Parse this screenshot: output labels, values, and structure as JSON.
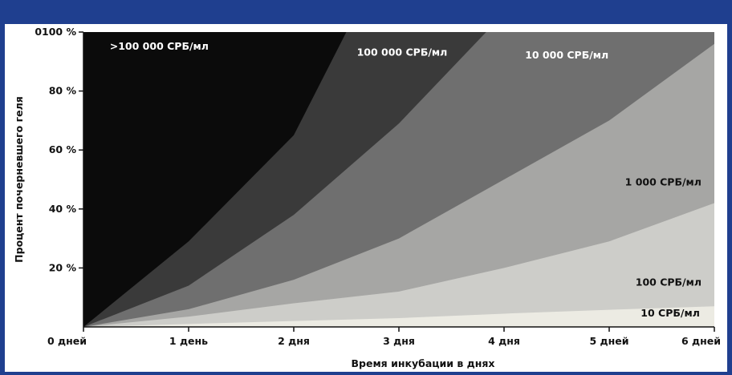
{
  "chart_data": {
    "type": "area",
    "xlabel": "Время инкубации в днях",
    "ylabel": "Процент почерневшего геля",
    "x_tick_labels": [
      "0 дней",
      "1 день",
      "2 дня",
      "3 дня",
      "4 дня",
      "5 дней",
      "6 дней"
    ],
    "y_tick_labels": [
      "20 %",
      "40 %",
      "60 %",
      "80 %",
      "0100 %"
    ],
    "y_ticks": [
      20,
      40,
      60,
      80,
      100
    ],
    "xlim": [
      0,
      6
    ],
    "ylim": [
      0,
      100
    ],
    "grid": false,
    "bands": [
      {
        "label": ">100 000 СРБ/мл",
        "color": "#0b0b0b",
        "label_color": "#ffffff",
        "x": [
          0,
          6
        ],
        "upper": [
          100,
          100
        ]
      },
      {
        "label": "100 000 СРБ/мл",
        "color": "#3a3a3a",
        "label_color": "#ffffff",
        "x": [
          0,
          1,
          2,
          2.5,
          6
        ],
        "upper": [
          0,
          29,
          65,
          100,
          100
        ]
      },
      {
        "label": "10 000 СРБ/мл",
        "color": "#6f6f6f",
        "label_color": "#ffffff",
        "x": [
          0,
          1,
          2,
          3,
          3.83,
          6
        ],
        "upper": [
          0,
          14,
          38,
          69,
          100,
          100
        ]
      },
      {
        "label": "1 000 СРБ/мл",
        "color": "#a6a6a4",
        "label_color": "#111111",
        "x": [
          0,
          1,
          2,
          3,
          4,
          5,
          6
        ],
        "upper": [
          0,
          6,
          16,
          30,
          50,
          70,
          96
        ]
      },
      {
        "label": "100 СРБ/мл",
        "color": "#cdcdc9",
        "label_color": "#111111",
        "x": [
          0,
          1,
          2,
          3,
          4,
          5,
          6
        ],
        "upper": [
          0,
          3.5,
          8,
          12,
          20,
          29,
          42
        ]
      },
      {
        "label": "10 СРБ/мл",
        "color": "#ecebe3",
        "label_color": "#111111",
        "x": [
          0,
          1,
          2,
          3,
          4,
          5,
          6
        ],
        "upper": [
          0,
          1,
          2,
          3,
          4.5,
          5.8,
          7
        ]
      }
    ]
  }
}
